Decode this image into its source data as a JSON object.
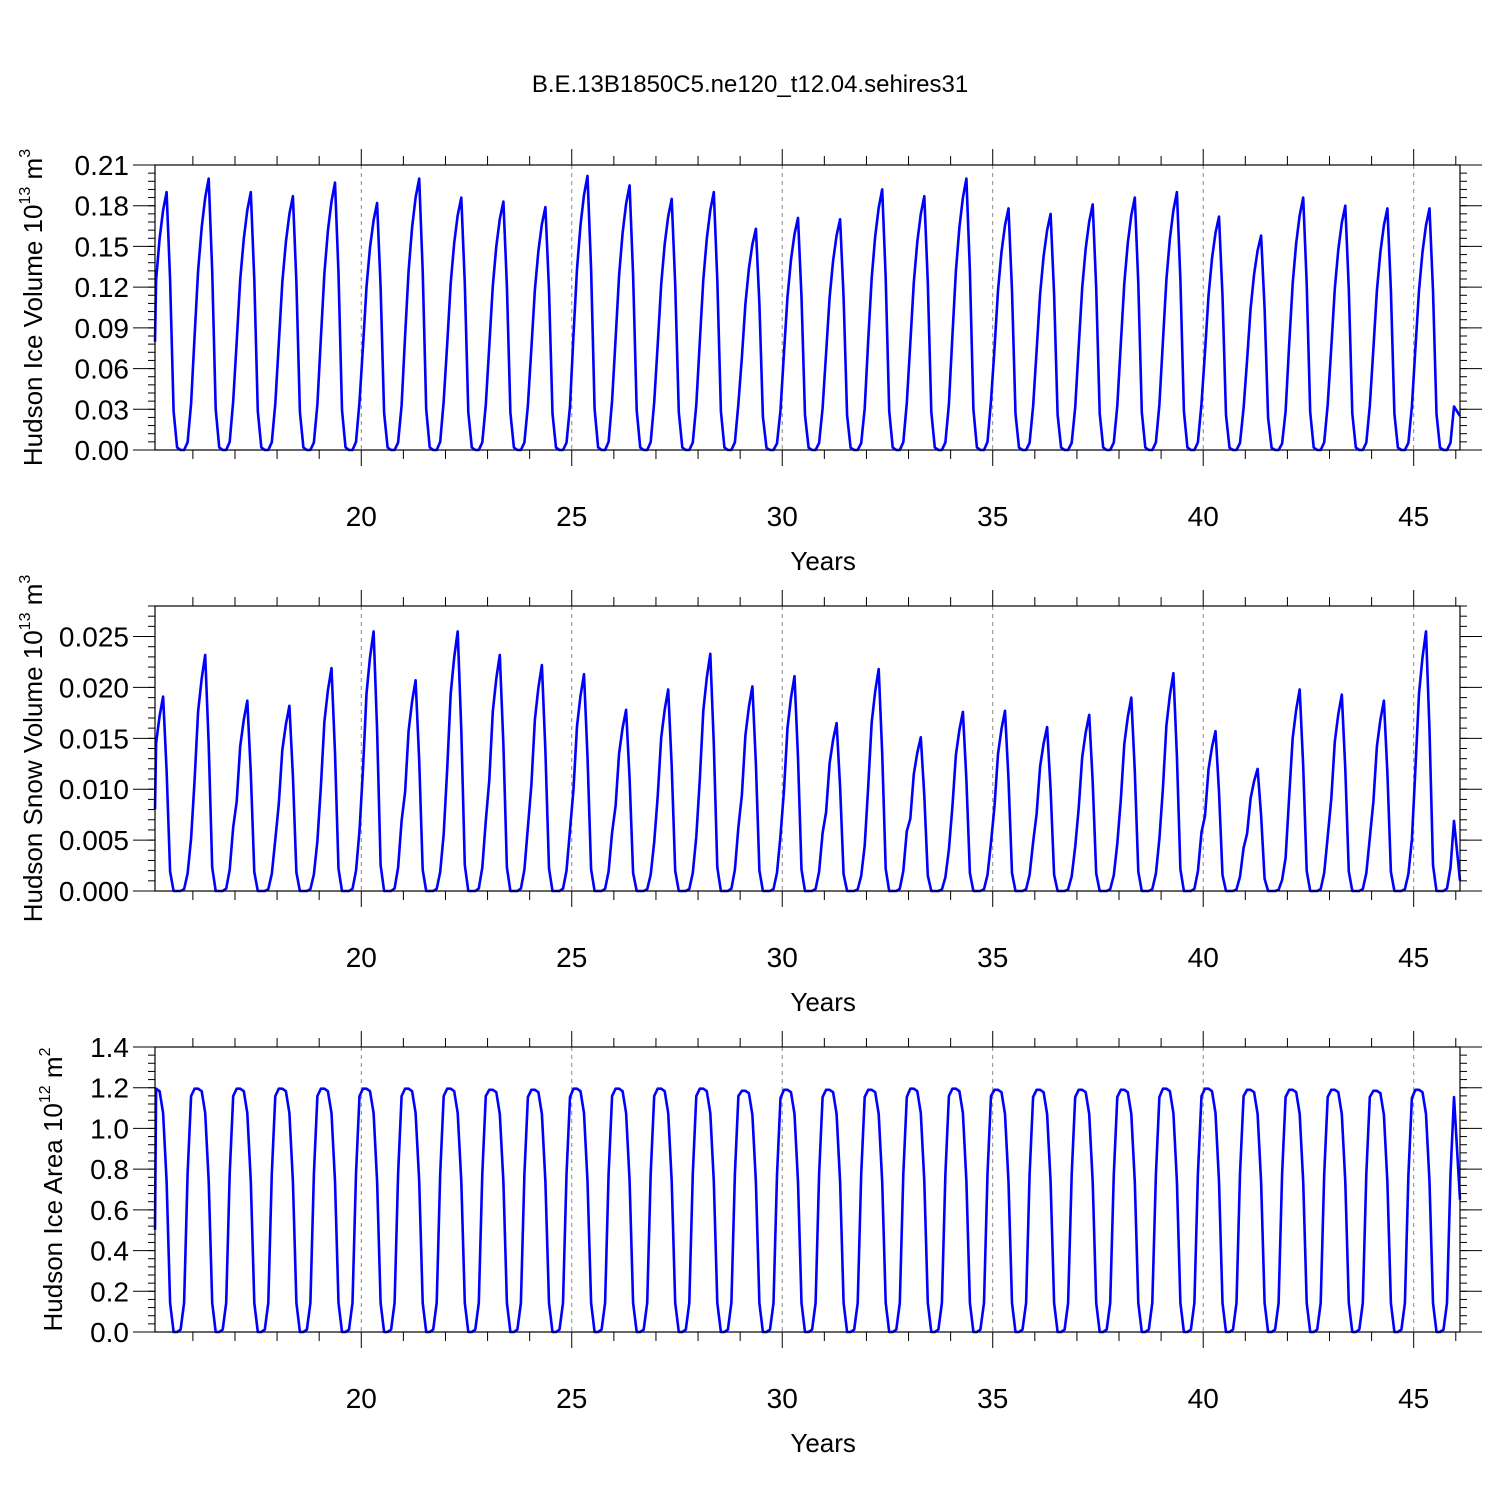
{
  "title": "B.E.13B1850C5.ne120_t12.04.sehires31",
  "chart_data": [
    {
      "type": "line",
      "ylabel_main": "Hudson Ice Volume 10",
      "ylabel_sup": "13",
      "ylabel_unit": "m",
      "ylabel_unit_sup": "3",
      "xlabel": "Years",
      "xlim": [
        15.1,
        46.1
      ],
      "ylim": [
        0,
        0.21
      ],
      "yticks": [
        "0.00",
        "0.03",
        "0.06",
        "0.09",
        "0.12",
        "0.15",
        "0.18",
        "0.21"
      ],
      "xticks": [
        "20",
        "25",
        "30",
        "35",
        "40",
        "45"
      ],
      "grid": "dashed vertical at x ticks",
      "color": "#0000ff",
      "start_year": 16,
      "monthly_shape": [
        0.42,
        0.66,
        0.82,
        0.93,
        1.0,
        0.66,
        0.15,
        0.01,
        0.0,
        0.0,
        0.03,
        0.18
      ],
      "peaks": [
        0.19,
        0.2,
        0.19,
        0.187,
        0.197,
        0.182,
        0.2,
        0.186,
        0.183,
        0.179,
        0.202,
        0.195,
        0.185,
        0.19,
        0.163,
        0.171,
        0.17,
        0.192,
        0.187,
        0.2,
        0.178,
        0.174,
        0.181,
        0.186,
        0.19,
        0.172,
        0.158,
        0.186,
        0.18,
        0.178,
        0.178
      ],
      "end_value": 0.025
    },
    {
      "type": "line",
      "ylabel_main": "Hudson Snow Volume 10",
      "ylabel_sup": "13",
      "ylabel_unit": "m",
      "ylabel_unit_sup": "3",
      "xlabel": "Years",
      "xlim": [
        15.1,
        46.1
      ],
      "ylim": [
        0,
        0.028
      ],
      "yticks": [
        "0.000",
        "0.005",
        "0.010",
        "0.015",
        "0.020",
        "0.025"
      ],
      "xticks": [
        "20",
        "25",
        "30",
        "35",
        "40",
        "45"
      ],
      "grid": "dashed vertical at x ticks",
      "color": "#0000ff",
      "start_year": 16,
      "monthly_shape": [
        0.47,
        0.76,
        0.9,
        1.0,
        0.62,
        0.1,
        0.0,
        0.0,
        0.0,
        0.01,
        0.09,
        0.27
      ],
      "peaks": [
        0.0191,
        0.0232,
        0.0187,
        0.0182,
        0.0219,
        0.0255,
        0.0207,
        0.0255,
        0.0232,
        0.0222,
        0.0213,
        0.0178,
        0.0198,
        0.0233,
        0.0201,
        0.0211,
        0.0165,
        0.0218,
        0.0151,
        0.0176,
        0.0177,
        0.0161,
        0.0173,
        0.019,
        0.0214,
        0.0157,
        0.012,
        0.0198,
        0.0193,
        0.0187,
        0.0255
      ],
      "end_value": 0.001
    },
    {
      "type": "line",
      "ylabel_main": "Hudson Ice Area 10",
      "ylabel_sup": "12",
      "ylabel_unit": "m",
      "ylabel_unit_sup": "2",
      "xlabel": "Years",
      "xlim": [
        15.1,
        46.1
      ],
      "ylim": [
        0,
        1.4
      ],
      "yticks": [
        "0.0",
        "0.2",
        "0.4",
        "0.6",
        "0.8",
        "1.0",
        "1.2",
        "1.4"
      ],
      "xticks": [
        "20",
        "25",
        "30",
        "35",
        "40",
        "45"
      ],
      "grid": "dashed vertical at x ticks",
      "color": "#0000ff",
      "start_year": 16,
      "monthly_shape": [
        1.0,
        1.0,
        0.99,
        0.9,
        0.62,
        0.12,
        0.0,
        0.0,
        0.01,
        0.12,
        0.65,
        0.97
      ],
      "peaks": [
        1.195,
        1.195,
        1.195,
        1.195,
        1.195,
        1.195,
        1.195,
        1.195,
        1.19,
        1.19,
        1.195,
        1.195,
        1.195,
        1.195,
        1.185,
        1.19,
        1.19,
        1.19,
        1.195,
        1.195,
        1.19,
        1.19,
        1.19,
        1.19,
        1.195,
        1.195,
        1.19,
        1.19,
        1.19,
        1.185,
        1.19
      ],
      "end_value": 0.65
    }
  ]
}
